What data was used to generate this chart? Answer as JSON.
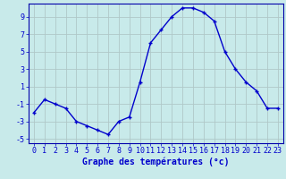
{
  "hours": [
    0,
    1,
    2,
    3,
    4,
    5,
    6,
    7,
    8,
    9,
    10,
    11,
    12,
    13,
    14,
    15,
    16,
    17,
    18,
    19,
    20,
    21,
    22,
    23
  ],
  "temperatures": [
    -2.0,
    -0.5,
    -1.0,
    -1.5,
    -3.0,
    -3.5,
    -4.0,
    -4.5,
    -3.0,
    -2.5,
    1.5,
    6.0,
    7.5,
    9.0,
    10.0,
    10.0,
    9.5,
    8.5,
    5.0,
    3.0,
    1.5,
    0.5,
    -1.5,
    -1.5
  ],
  "line_color": "#0000cc",
  "marker": "+",
  "bg_color": "#c8eaea",
  "grid_color": "#b0c8c8",
  "xlabel": "Graphe des températures (°c)",
  "xlabel_color": "#0000cc",
  "ylim": [
    -5.5,
    10.5
  ],
  "yticks": [
    -5,
    -3,
    -1,
    1,
    3,
    5,
    7,
    9
  ],
  "xlim": [
    -0.5,
    23.5
  ],
  "xticks": [
    0,
    1,
    2,
    3,
    4,
    5,
    6,
    7,
    8,
    9,
    10,
    11,
    12,
    13,
    14,
    15,
    16,
    17,
    18,
    19,
    20,
    21,
    22,
    23
  ],
  "tick_color": "#0000cc",
  "axis_color": "#0000aa",
  "label_fontsize": 7,
  "tick_fontsize": 6,
  "markersize": 3,
  "linewidth": 1.0
}
